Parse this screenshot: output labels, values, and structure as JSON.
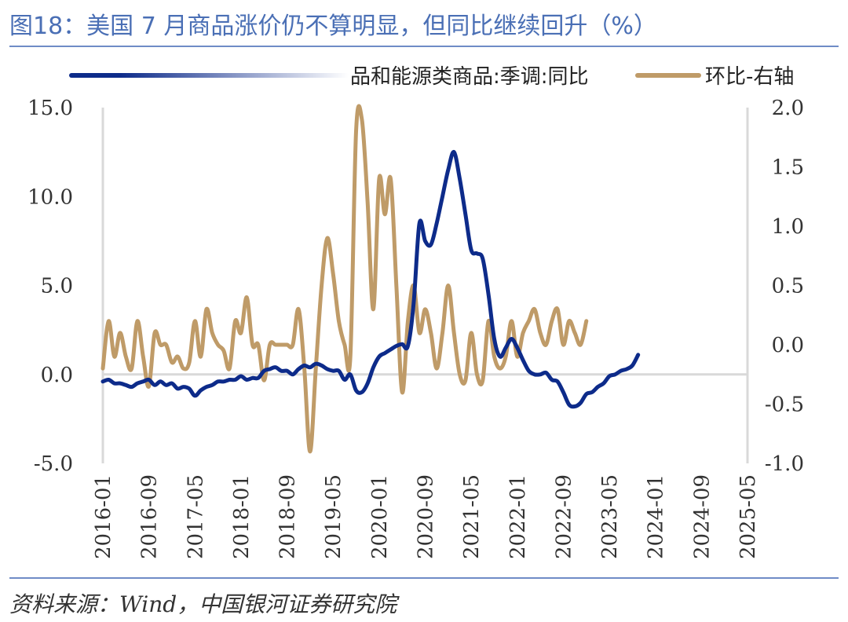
{
  "title": "图18：美国 7 月商品涨价仍不算明显，但同比继续回升（%）",
  "source": "资料来源：Wind，中国银河证券研究院",
  "colors": {
    "yoy": "#0d2b8a",
    "mom": "#bf9b68",
    "accent": "#4a6fb5"
  },
  "chart_data": {
    "type": "line",
    "legend_position": "top",
    "x_labels": [
      "2016-01",
      "2016-09",
      "2017-05",
      "2018-01",
      "2018-09",
      "2019-05",
      "2020-01",
      "2020-09",
      "2021-05",
      "2022-01",
      "2022-09",
      "2023-05",
      "2024-01",
      "2024-09",
      "2025-05"
    ],
    "y_left": {
      "ticks": [
        "15.0",
        "10.0",
        "5.0",
        "0.0",
        "-5.0"
      ],
      "range": [
        -5,
        15
      ]
    },
    "y_right": {
      "ticks": [
        "2.0",
        "1.5",
        "1.0",
        "0.5",
        "0.0",
        "-0.5",
        "-1.0"
      ],
      "range": [
        -1,
        2
      ]
    },
    "series": [
      {
        "name": "品和能源类商品:季调:同比",
        "axis": "left",
        "start": "2016-01",
        "values": [
          -0.4,
          -0.3,
          -0.5,
          -0.5,
          -0.6,
          -0.7,
          -0.5,
          -0.4,
          -0.3,
          -0.6,
          -0.4,
          -0.6,
          -0.5,
          -0.8,
          -0.7,
          -0.8,
          -1.2,
          -0.9,
          -0.7,
          -0.6,
          -0.4,
          -0.4,
          -0.3,
          -0.3,
          -0.1,
          -0.3,
          -0.2,
          -0.2,
          0.2,
          0.3,
          0.4,
          0.2,
          0.2,
          0.0,
          0.3,
          0.5,
          0.4,
          0.6,
          0.5,
          0.3,
          0.2,
          0.2,
          -0.3,
          0.0,
          -0.9,
          -1.0,
          -0.5,
          0.4,
          1.0,
          1.2,
          1.4,
          1.6,
          1.7,
          1.6,
          4.0,
          8.5,
          7.5,
          7.3,
          8.5,
          10.0,
          11.5,
          12.5,
          11.0,
          9.0,
          7.0,
          6.8,
          6.5,
          4.5,
          2.0,
          1.0,
          1.5,
          2.0,
          1.5,
          0.8,
          0.2,
          0.0,
          0.0,
          0.1,
          -0.3,
          -0.4,
          -1.0,
          -1.7,
          -1.8,
          -1.6,
          -1.1,
          -1.0,
          -0.7,
          -0.5,
          -0.1,
          0.0,
          0.2,
          0.3,
          0.5,
          1.1
        ]
      },
      {
        "name": "环比-右轴",
        "axis": "right",
        "start": "2016-01",
        "values": [
          -0.2,
          0.2,
          -0.1,
          0.1,
          -0.1,
          -0.2,
          0.2,
          -0.1,
          -0.35,
          0.1,
          0.0,
          0.0,
          -0.15,
          -0.1,
          -0.2,
          -0.15,
          0.2,
          -0.1,
          0.3,
          0.1,
          0.0,
          -0.05,
          -0.2,
          0.2,
          0.1,
          0.4,
          0.0,
          0.0,
          -0.3,
          0.0,
          0.0,
          0.0,
          0.0,
          0.0,
          0.3,
          -0.2,
          -0.9,
          -0.2,
          0.5,
          0.9,
          0.6,
          0.2,
          0.0,
          -0.1,
          1.8,
          1.9,
          1.2,
          0.3,
          1.4,
          1.1,
          1.4,
          0.5,
          -0.4,
          0.2,
          0.5,
          0.1,
          0.3,
          0.1,
          -0.2,
          0.1,
          0.5,
          0.1,
          -0.25,
          -0.3,
          0.1,
          -0.25,
          -0.3,
          0.2,
          -0.1,
          -0.2,
          -0.1,
          0.2,
          -0.1,
          0.1,
          0.2,
          0.3,
          0.1,
          0.0,
          0.2,
          0.3,
          0.0,
          0.2,
          0.1,
          0.0,
          0.2
        ]
      }
    ]
  }
}
